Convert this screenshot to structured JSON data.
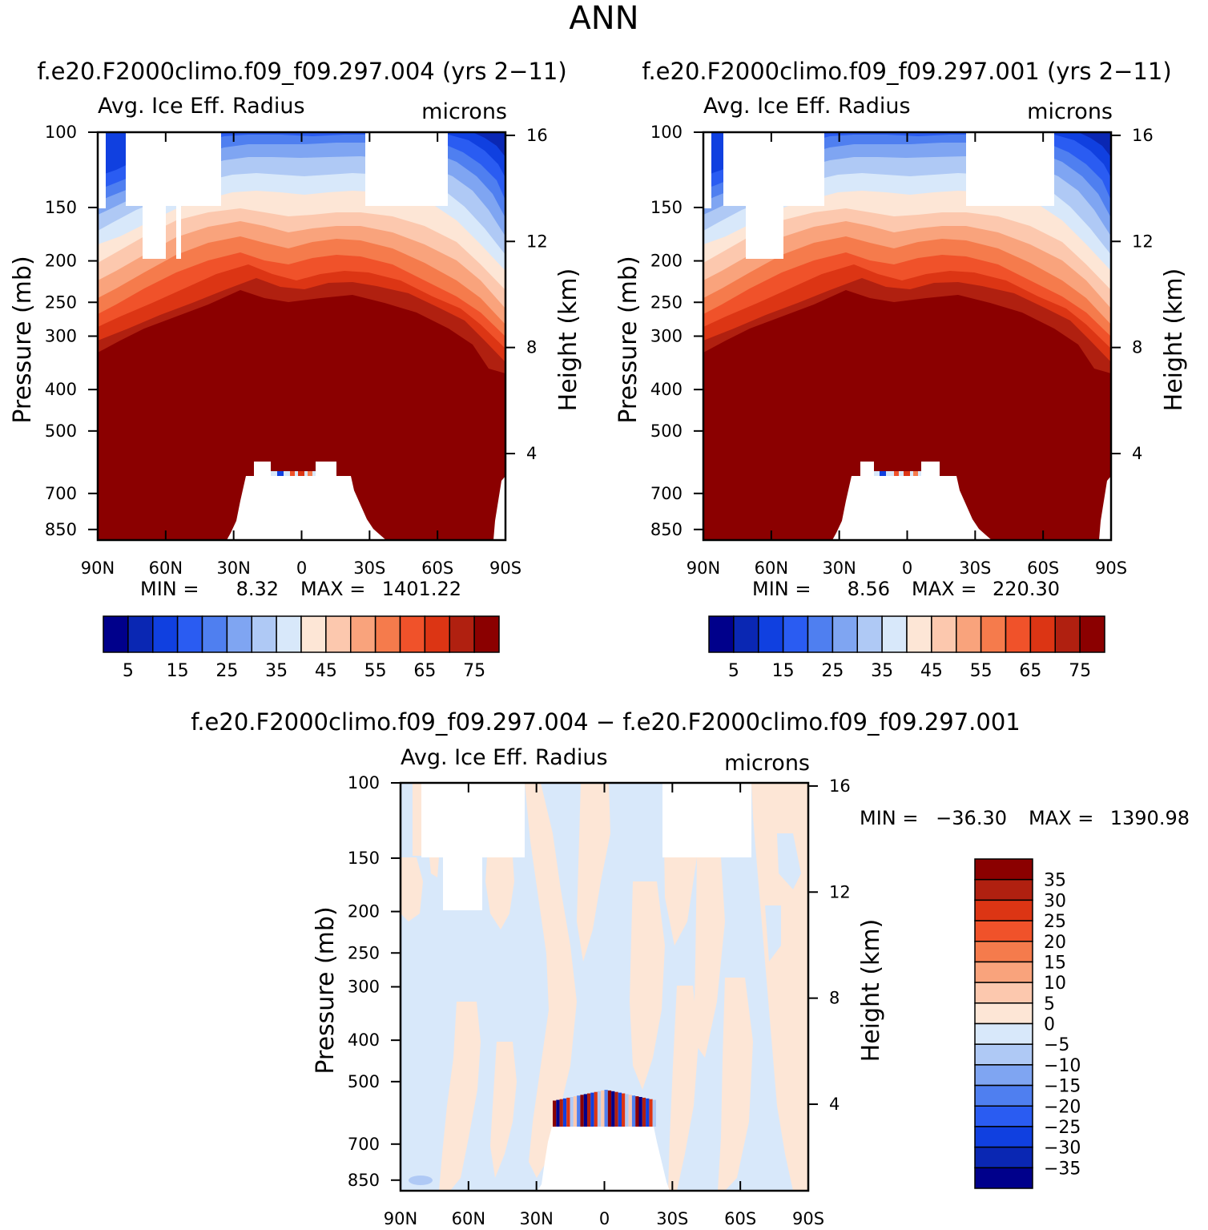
{
  "figure": {
    "season": "ANN",
    "diff_title": "f.e20.F2000climo.f09_f09.297.004 − f.e20.F2000climo.f09_f09.297.001"
  },
  "chart_data": [
    {
      "type": "heatmap",
      "title": "f.e20.F2000climo.f09_f09.297.004 (yrs 2−11)",
      "subtitle_left": "Avg. Ice Eff. Radius",
      "subtitle_right": "microns",
      "ylabel": "Pressure (mb)",
      "ylabel_right": "Height (km)",
      "x_ticks": [
        "90N",
        "60N",
        "30N",
        "0",
        "30S",
        "60S",
        "90S"
      ],
      "y_ticks": [
        100,
        150,
        200,
        250,
        300,
        400,
        500,
        700,
        850
      ],
      "y_ticks_right": [
        16,
        12,
        8,
        4
      ],
      "min_label": "MIN =",
      "min_value": "8.32",
      "max_label": "MAX =",
      "max_value": "1401.22",
      "colorbar": {
        "labels": [
          "5",
          "15",
          "25",
          "35",
          "45",
          "55",
          "65",
          "75"
        ],
        "colors": [
          "#00008b",
          "#0a27b3",
          "#1040e0",
          "#2a5cf2",
          "#4f7ff0",
          "#7fa5f2",
          "#afc9f5",
          "#d8e8fa",
          "#fde6d6",
          "#fcc8ae",
          "#f9a37c",
          "#f57b4c",
          "#f0522a",
          "#dc3514",
          "#b02010",
          "#8b0000"
        ]
      }
    },
    {
      "type": "heatmap",
      "title": "f.e20.F2000climo.f09_f09.297.001 (yrs 2−11)",
      "subtitle_left": "Avg. Ice Eff. Radius",
      "subtitle_right": "microns",
      "ylabel": "Pressure (mb)",
      "ylabel_right": "Height (km)",
      "x_ticks": [
        "90N",
        "60N",
        "30N",
        "0",
        "30S",
        "60S",
        "90S"
      ],
      "y_ticks": [
        100,
        150,
        200,
        250,
        300,
        400,
        500,
        700,
        850
      ],
      "y_ticks_right": [
        16,
        12,
        8,
        4
      ],
      "min_label": "MIN =",
      "min_value": "8.56",
      "max_label": "MAX =",
      "max_value": "220.30",
      "colorbar": {
        "labels": [
          "5",
          "15",
          "25",
          "35",
          "45",
          "55",
          "65",
          "75"
        ],
        "colors": [
          "#00008b",
          "#0a27b3",
          "#1040e0",
          "#2a5cf2",
          "#4f7ff0",
          "#7fa5f2",
          "#afc9f5",
          "#d8e8fa",
          "#fde6d6",
          "#fcc8ae",
          "#f9a37c",
          "#f57b4c",
          "#f0522a",
          "#dc3514",
          "#b02010",
          "#8b0000"
        ]
      }
    },
    {
      "type": "heatmap",
      "subtitle_left": "Avg. Ice Eff. Radius",
      "subtitle_right": "microns",
      "ylabel": "Pressure (mb)",
      "ylabel_right": "Height (km)",
      "x_ticks": [
        "90N",
        "60N",
        "30N",
        "0",
        "30S",
        "60S",
        "90S"
      ],
      "y_ticks": [
        100,
        150,
        200,
        250,
        300,
        400,
        500,
        700,
        850
      ],
      "y_ticks_right": [
        16,
        12,
        8,
        4
      ],
      "min_label": "MIN =",
      "min_value": "−36.30",
      "max_label": "MAX =",
      "max_value": "1390.98",
      "colorbar": {
        "labels": [
          "35",
          "30",
          "25",
          "20",
          "15",
          "10",
          "5",
          "0",
          "−5",
          "−10",
          "−15",
          "−20",
          "−25",
          "−30",
          "−35"
        ],
        "colors": [
          "#8b0000",
          "#b02010",
          "#dc3514",
          "#f0522a",
          "#f57b4c",
          "#f9a37c",
          "#fcc8ae",
          "#fde6d6",
          "#d8e8fa",
          "#afc9f5",
          "#7fa5f2",
          "#4f7ff0",
          "#2a5cf2",
          "#1040e0",
          "#0a27b3",
          "#00008b"
        ]
      }
    }
  ]
}
